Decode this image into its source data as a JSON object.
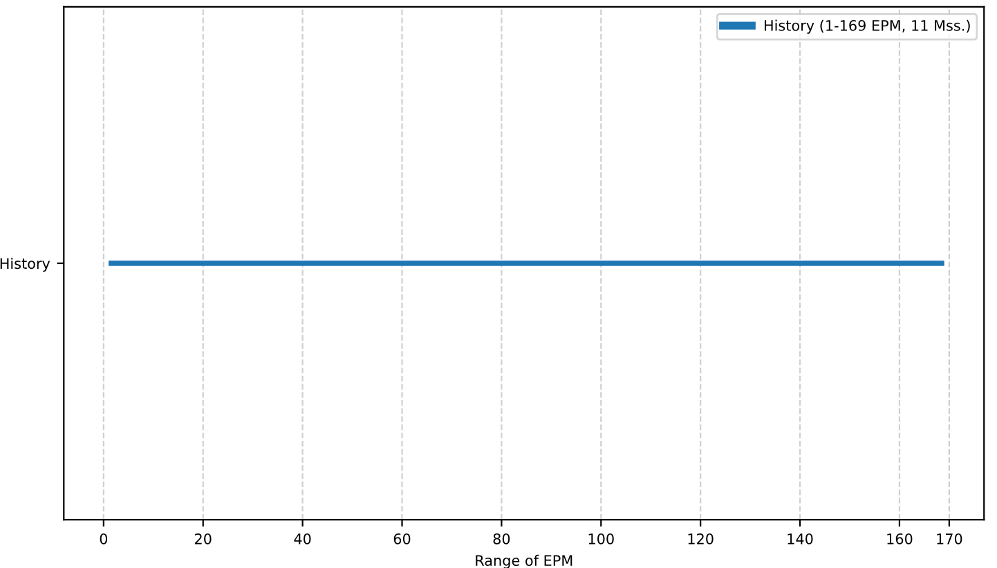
{
  "chart_data": {
    "type": "bar",
    "orientation": "horizontal",
    "categories": [
      "History"
    ],
    "series": [
      {
        "name": "History (1-169 EPM, 11 Mss.)",
        "color": "#1f77b4",
        "values": [
          168
        ],
        "base": [
          1
        ]
      }
    ],
    "xlabel": "Range of EPM",
    "xlim": [
      -8,
      177
    ],
    "xticks": [
      0,
      20,
      40,
      60,
      80,
      100,
      120,
      140,
      160,
      170
    ],
    "grid": "x",
    "legend": "top right"
  }
}
